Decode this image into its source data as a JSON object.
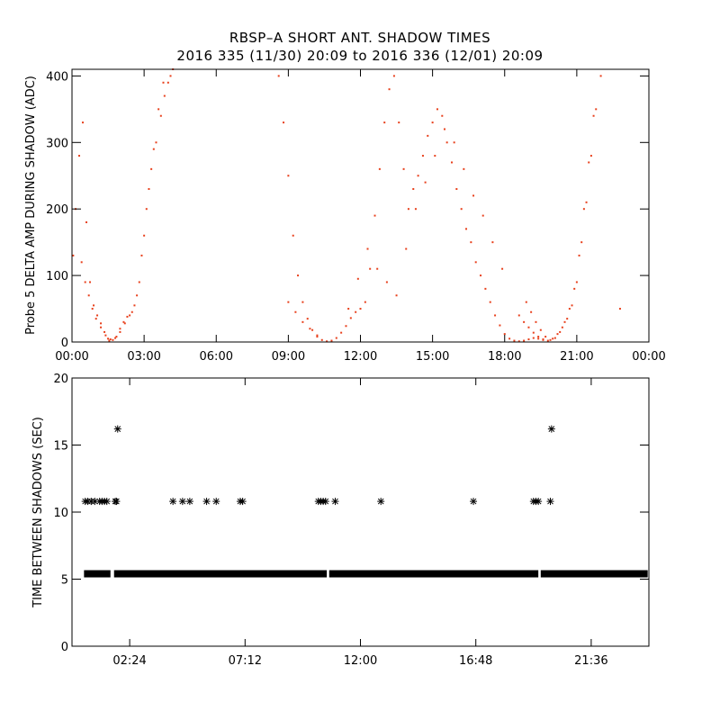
{
  "title": "RBSP–A SHORT ANT. SHADOW TIMES",
  "subtitle": "2016 335 (11/30) 20:09 to 2016 336 (12/01) 20:09",
  "colors": {
    "top_points": "#e8401c",
    "bottom_points": "#000000",
    "axes": "#000000"
  },
  "chart_data": [
    {
      "type": "scatter",
      "xlabel": "",
      "ylabel": "Probe 5 DELTA AMP DURING SHADOW (ADC)",
      "xlim": [
        0,
        24
      ],
      "ylim": [
        0,
        410
      ],
      "x_ticks": [
        0,
        3,
        6,
        9,
        12,
        15,
        18,
        21,
        24
      ],
      "x_tick_labels": [
        "00:00",
        "03:00",
        "06:00",
        "09:00",
        "12:00",
        "15:00",
        "18:00",
        "21:00",
        "00:00"
      ],
      "y_ticks": [
        0,
        100,
        200,
        300,
        400
      ],
      "y_tick_labels": [
        "0",
        "100",
        "200",
        "300",
        "400"
      ],
      "grid": false,
      "series": [
        {
          "x": [
            0.05,
            0.15,
            0.3,
            0.45,
            0.6,
            0.75,
            0.9,
            1.05,
            1.2,
            1.35,
            1.5,
            1.55,
            1.7,
            1.85,
            2.0,
            2.15,
            2.3,
            2.5,
            2.7,
            2.9,
            3.1,
            3.3,
            3.5,
            3.7,
            3.85,
            4.0,
            4.1,
            4.2,
            0.4,
            0.55,
            0.7,
            0.85,
            1.0,
            1.2,
            1.4,
            1.6,
            1.8,
            2.0,
            2.2,
            2.4,
            2.6,
            2.8,
            3.0,
            3.2,
            3.4,
            3.6,
            3.8
          ],
          "y": [
            130,
            200,
            280,
            330,
            180,
            90,
            55,
            40,
            28,
            15,
            5,
            2,
            3,
            8,
            20,
            30,
            38,
            45,
            70,
            130,
            200,
            260,
            300,
            340,
            370,
            390,
            400,
            410,
            120,
            90,
            70,
            50,
            35,
            22,
            10,
            4,
            6,
            15,
            28,
            40,
            55,
            90,
            160,
            230,
            290,
            350,
            390
          ]
        },
        {
          "x": [
            8.6,
            8.8,
            9.0,
            9.2,
            9.4,
            9.6,
            9.8,
            10.0,
            10.2,
            10.4,
            10.6,
            10.8,
            11.0,
            11.2,
            11.4,
            11.6,
            11.8,
            12.0,
            12.2,
            12.4,
            12.6,
            12.8,
            13.0,
            13.2,
            13.4,
            13.6,
            13.8,
            14.0,
            14.2,
            14.4,
            14.6,
            14.8,
            15.0,
            15.2,
            15.4,
            15.6,
            15.8,
            16.0,
            16.2,
            16.4,
            16.6,
            16.8,
            17.0,
            17.2,
            17.4,
            17.6,
            17.8,
            18.0,
            18.2,
            18.4,
            18.6,
            18.8,
            19.0,
            19.2,
            19.4,
            19.6,
            9.0,
            9.3,
            9.6,
            9.9,
            10.2,
            11.5,
            11.9,
            12.3,
            12.7,
            13.1,
            13.5,
            13.9,
            14.3,
            14.7,
            15.1,
            15.5,
            15.9,
            16.3,
            16.7,
            17.1,
            17.5,
            17.9
          ],
          "y": [
            400,
            330,
            250,
            160,
            100,
            60,
            35,
            18,
            8,
            3,
            1,
            2,
            6,
            14,
            24,
            36,
            45,
            50,
            60,
            110,
            190,
            260,
            330,
            380,
            400,
            330,
            260,
            200,
            230,
            250,
            280,
            310,
            330,
            350,
            340,
            300,
            270,
            230,
            200,
            170,
            150,
            120,
            100,
            80,
            60,
            40,
            25,
            12,
            5,
            2,
            1,
            2,
            4,
            6,
            5,
            3,
            60,
            45,
            30,
            20,
            10,
            50,
            95,
            140,
            110,
            90,
            70,
            140,
            200,
            240,
            280,
            320,
            300,
            260,
            220,
            190,
            150,
            110
          ]
        },
        {
          "x": [
            18.6,
            18.8,
            19.0,
            19.2,
            19.4,
            19.6,
            19.8,
            20.0,
            20.2,
            20.4,
            20.6,
            20.8,
            21.0,
            21.2,
            21.4,
            21.6,
            21.8,
            22.0,
            18.9,
            19.1,
            19.3,
            19.5,
            19.7,
            19.9,
            20.1,
            20.3,
            20.5,
            20.7,
            20.9,
            21.1,
            21.3,
            21.5,
            21.7,
            22.8
          ],
          "y": [
            40,
            30,
            22,
            14,
            8,
            4,
            2,
            5,
            12,
            22,
            35,
            55,
            90,
            150,
            210,
            280,
            350,
            400,
            60,
            45,
            30,
            18,
            8,
            3,
            6,
            15,
            30,
            50,
            80,
            130,
            200,
            270,
            340,
            50
          ]
        }
      ]
    },
    {
      "type": "scatter",
      "xlabel": "",
      "ylabel": "TIME BETWEEN SHADOWS (SEC)",
      "xlim": [
        0,
        24
      ],
      "ylim": [
        0,
        20
      ],
      "x_ticks": [
        2.4,
        7.2,
        12.0,
        16.8,
        21.6
      ],
      "x_tick_labels": [
        "02:24",
        "07:12",
        "12:00",
        "16:48",
        "21:36"
      ],
      "y_ticks": [
        0,
        5,
        10,
        15,
        20
      ],
      "y_tick_labels": [
        "0",
        "5",
        "10",
        "15",
        "20"
      ],
      "grid": false,
      "baseline": {
        "value": 5.4,
        "ranges": [
          [
            0.5,
            1.6
          ],
          [
            1.75,
            10.6
          ],
          [
            10.7,
            19.4
          ],
          [
            19.5,
            23.95
          ]
        ]
      },
      "points": {
        "x": [
          0.55,
          0.65,
          0.8,
          0.95,
          1.15,
          1.25,
          1.35,
          1.45,
          1.8,
          1.85,
          1.9,
          4.2,
          4.6,
          4.9,
          5.6,
          6.0,
          7.0,
          7.1,
          10.25,
          10.35,
          10.45,
          10.55,
          10.95,
          12.85,
          16.7,
          19.2,
          19.3,
          19.4,
          19.9,
          19.95
        ],
        "y": [
          10.8,
          10.8,
          10.8,
          10.8,
          10.8,
          10.8,
          10.8,
          10.8,
          10.8,
          10.8,
          16.2,
          10.8,
          10.8,
          10.8,
          10.8,
          10.8,
          10.8,
          10.8,
          10.8,
          10.8,
          10.8,
          10.8,
          10.8,
          10.8,
          10.8,
          10.8,
          10.8,
          10.8,
          10.8,
          16.2
        ]
      }
    }
  ]
}
